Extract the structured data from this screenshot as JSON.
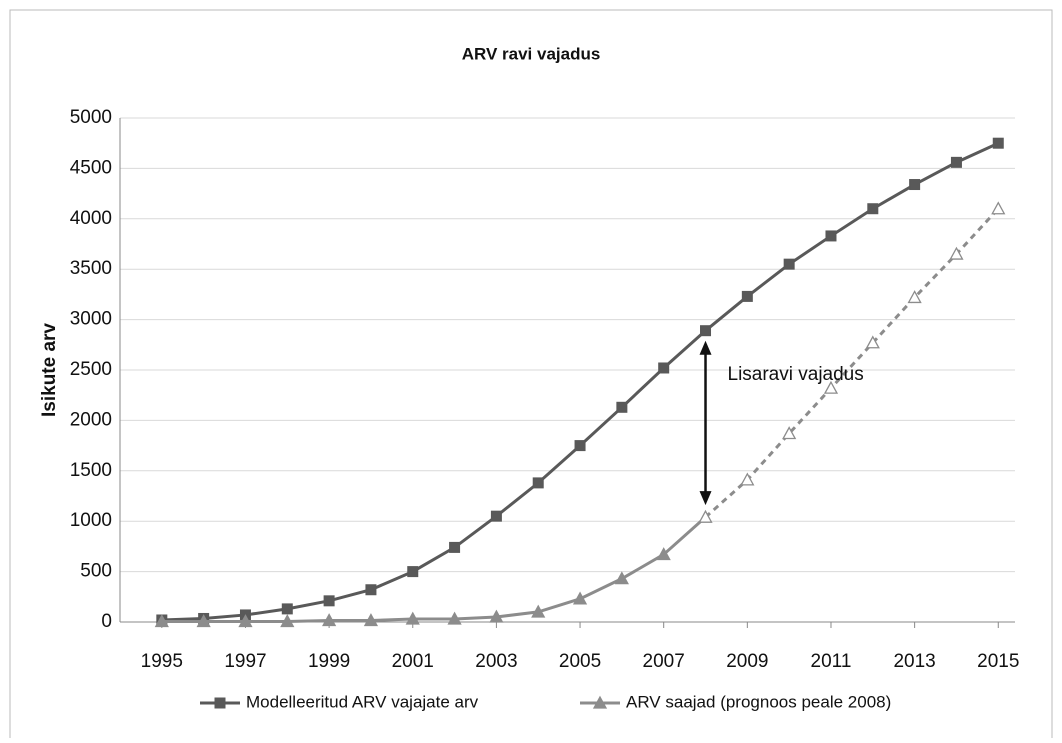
{
  "chart_data": {
    "type": "line",
    "title": "ARV ravi vajadus",
    "y_label": "Isikute arv",
    "x": [
      1995,
      1996,
      1997,
      1998,
      1999,
      2000,
      2001,
      2002,
      2003,
      2004,
      2005,
      2006,
      2007,
      2008,
      2009,
      2010,
      2011,
      2012,
      2013,
      2014,
      2015
    ],
    "xlim": [
      1994,
      2015.4
    ],
    "xticks": [
      1995,
      1997,
      1999,
      2001,
      2003,
      2005,
      2007,
      2009,
      2011,
      2013,
      2015
    ],
    "ylim": [
      0,
      5000
    ],
    "yticks": [
      0,
      500,
      1000,
      1500,
      2000,
      2500,
      3000,
      3500,
      4000,
      4500,
      5000
    ],
    "grid": true,
    "legend": "bottom",
    "series": [
      {
        "name": "Modelleeritud ARV vajajate arv",
        "color": "#595959",
        "marker": "square",
        "values": [
          20,
          35,
          70,
          130,
          210,
          320,
          500,
          740,
          1050,
          1380,
          1750,
          2130,
          2520,
          2890,
          3230,
          3550,
          3830,
          4100,
          4340,
          4560,
          4750
        ]
      },
      {
        "name": "ARV saajad (prognoos peale 2008)",
        "color": "#8c8c8c",
        "marker": "triangle",
        "projected_from": 2008,
        "values": [
          5,
          5,
          5,
          5,
          15,
          15,
          30,
          30,
          50,
          100,
          230,
          430,
          670,
          1040,
          1410,
          1870,
          2320,
          2770,
          3220,
          3650,
          4100
        ]
      }
    ],
    "annotation": {
      "text": "Lisaravi vajadus",
      "x": 2008
    }
  }
}
